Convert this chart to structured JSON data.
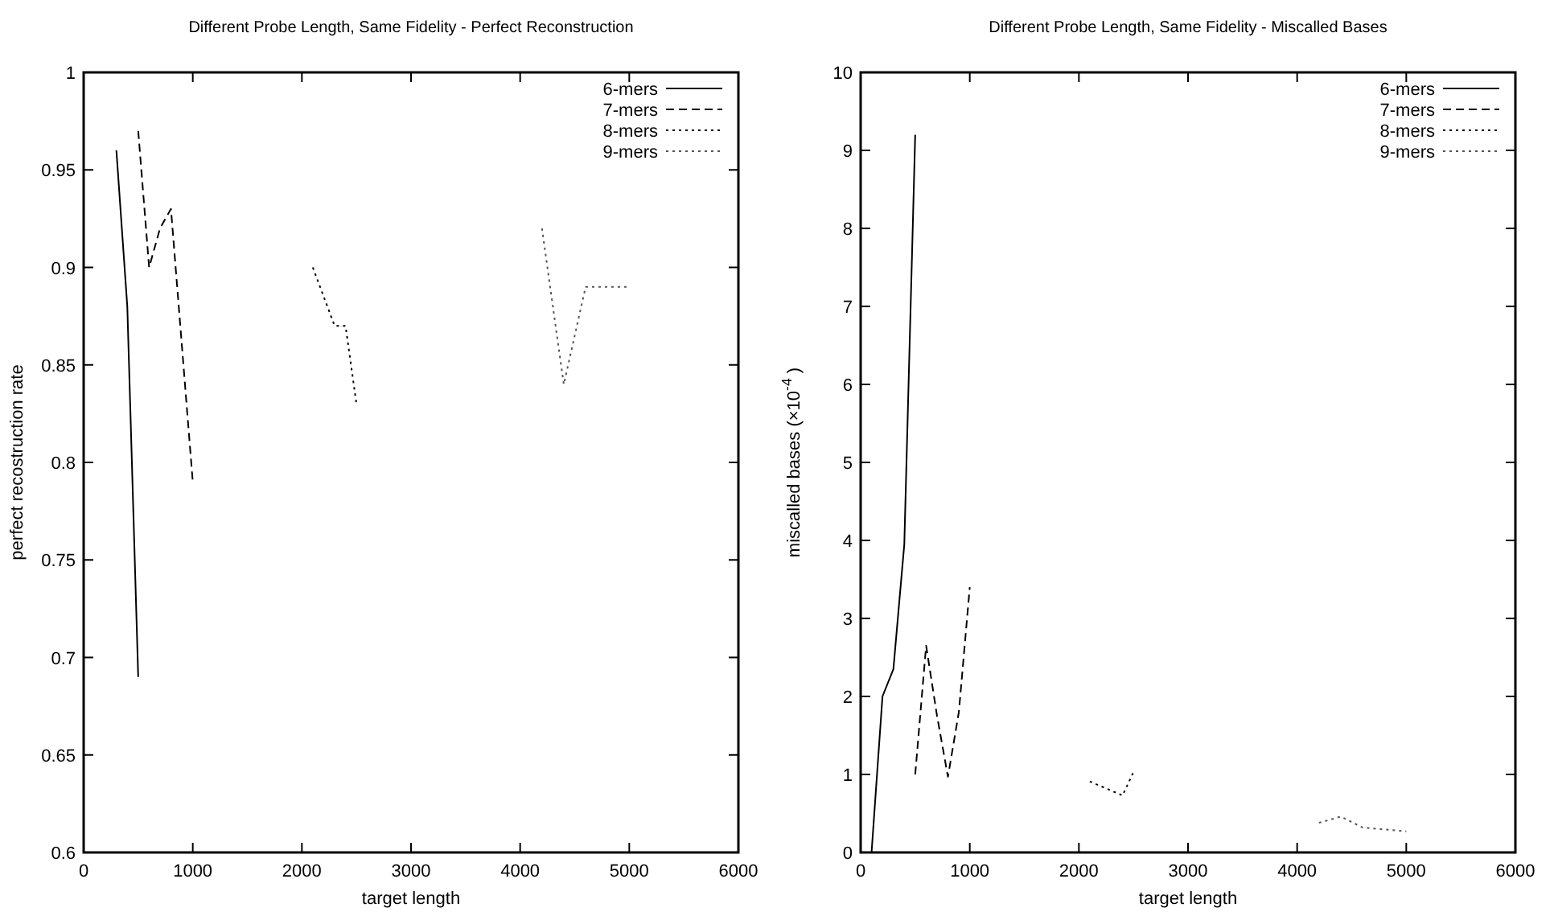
{
  "chart_data": [
    {
      "type": "line",
      "title": "Different Probe Length, Same Fidelity - Perfect Reconstruction",
      "xlabel": "target length",
      "ylabel": "perfect recostruction rate",
      "xlim": [
        0,
        6000
      ],
      "xticks": [
        0,
        1000,
        2000,
        3000,
        4000,
        5000,
        6000
      ],
      "ylim": [
        0.6,
        1
      ],
      "yticks": [
        {
          "value": 0.6,
          "label": "0.6"
        },
        {
          "value": 0.65,
          "label": "0.65"
        },
        {
          "value": 0.7,
          "label": "0.7"
        },
        {
          "value": 0.75,
          "label": "0.75"
        },
        {
          "value": 0.8,
          "label": "0.8"
        },
        {
          "value": 0.85,
          "label": "0.85"
        },
        {
          "value": 0.9,
          "label": "0.9"
        },
        {
          "value": 0.95,
          "label": "0.95"
        },
        {
          "value": 1,
          "label": "1"
        }
      ],
      "grid": false,
      "legend": "top right",
      "marker": "none",
      "series": [
        {
          "name": "6-mers",
          "color": "#000000",
          "line_style": "solid",
          "x": [
            300,
            400,
            500
          ],
          "values": [
            0.96,
            0.88,
            0.69
          ]
        },
        {
          "name": "7-mers",
          "color": "#000000",
          "line_style": "dashed",
          "x": [
            500,
            600,
            700,
            800,
            1000
          ],
          "values": [
            0.97,
            0.9,
            0.92,
            0.93,
            0.79
          ]
        },
        {
          "name": "8-mers",
          "color": "#000000",
          "line_style": "dotted",
          "x": [
            2100,
            2300,
            2400,
            2500
          ],
          "values": [
            0.9,
            0.87,
            0.87,
            0.83
          ]
        },
        {
          "name": "9-mers",
          "color": "#555555",
          "line_style": "dotted",
          "x": [
            4200,
            4400,
            4600,
            5000
          ],
          "values": [
            0.92,
            0.84,
            0.89,
            0.89
          ]
        }
      ]
    },
    {
      "type": "line",
      "title": "Different Probe Length, Same Fidelity - Miscalled Bases",
      "xlabel": "target length",
      "ylabel": "miscalled bases (×10$^{-4}$ )",
      "xlim": [
        0,
        6000
      ],
      "xticks": [
        0,
        1000,
        2000,
        3000,
        4000,
        5000,
        6000
      ],
      "ylim": [
        0,
        10
      ],
      "yticks": [
        0,
        1,
        2,
        3,
        4,
        5,
        6,
        7,
        8,
        9,
        10
      ],
      "grid": false,
      "legend": "top right",
      "marker": "none",
      "series": [
        {
          "name": "6-mers",
          "color": "#000000",
          "line_style": "solid",
          "x": [
            100,
            200,
            300,
            400,
            500
          ],
          "values": [
            0,
            2.0,
            2.35,
            3.95,
            9.2
          ]
        },
        {
          "name": "7-mers",
          "color": "#000000",
          "line_style": "dashed",
          "x": [
            500,
            600,
            700,
            800,
            900,
            1000
          ],
          "values": [
            1.0,
            2.65,
            1.75,
            0.97,
            1.8,
            3.4
          ]
        },
        {
          "name": "8-mers",
          "color": "#000000",
          "line_style": "dotted",
          "x": [
            2100,
            2400,
            2500
          ],
          "values": [
            0.91,
            0.73,
            1.03
          ]
        },
        {
          "name": "9-mers",
          "color": "#555555",
          "line_style": "dotted",
          "x": [
            4200,
            4400,
            4600,
            5000
          ],
          "values": [
            0.38,
            0.46,
            0.32,
            0.27
          ]
        }
      ]
    }
  ]
}
